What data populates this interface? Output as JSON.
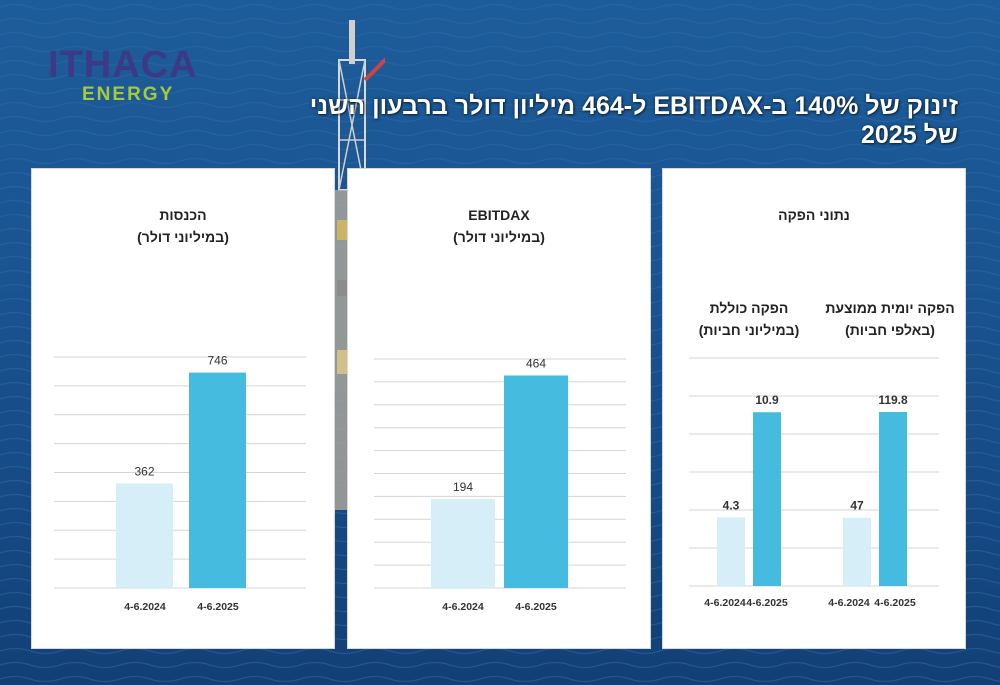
{
  "brand": {
    "name": "ITHACA",
    "sub": "ENERGY"
  },
  "headline": "זינוק של 140%  ב-EBITDAX ל-464 מיליון דולר ברבעון השני של 2025",
  "colors": {
    "bar_2024": "#d6eef7",
    "bar_2025": "#45bcdf",
    "grid": "#d5d5d5",
    "text": "#333333"
  },
  "panels": {
    "revenue": {
      "title": "הכנסות",
      "subtitle": "(במיליוני דולר)"
    },
    "ebitdax": {
      "title": "EBITDAX",
      "subtitle": "(במיליוני דולר)"
    },
    "production": {
      "title": "נתוני הפקה",
      "total_title": "הפקה כוללת",
      "total_subtitle": "(במיליוני חביות)",
      "daily_title": "הפקה יומית ממוצעת",
      "daily_subtitle": "(באלפי חביות)"
    }
  },
  "chart_data": [
    {
      "id": "revenue",
      "type": "bar",
      "title": "הכנסות (במיליוני דולר)",
      "categories": [
        "4-6.2024",
        "4-6.2025"
      ],
      "values": [
        362,
        746
      ],
      "ylim": [
        0,
        800
      ],
      "grid": true
    },
    {
      "id": "ebitdax",
      "type": "bar",
      "title": "EBITDAX (במיליוני דולר)",
      "categories": [
        "4-6.2024",
        "4-6.2025"
      ],
      "values": [
        194,
        464
      ],
      "ylim": [
        0,
        500
      ],
      "grid": true
    },
    {
      "id": "total_production",
      "type": "bar",
      "title": "הפקה כוללת (במיליוני חביות)",
      "categories": [
        "4-6.2024",
        "4-6.2025"
      ],
      "values": [
        4.3,
        10.9
      ],
      "labels": [
        "4.3",
        "10.9"
      ],
      "ylim": [
        0,
        14.3
      ],
      "grid": true
    },
    {
      "id": "daily_production",
      "type": "bar",
      "title": "הפקה יומית ממוצעת (באלפי חביות)",
      "categories": [
        "4-6.2024",
        "4-6.2025"
      ],
      "values": [
        47,
        119.8
      ],
      "labels": [
        "47",
        "119.8"
      ],
      "ylim": [
        0,
        157
      ],
      "grid": true
    }
  ]
}
